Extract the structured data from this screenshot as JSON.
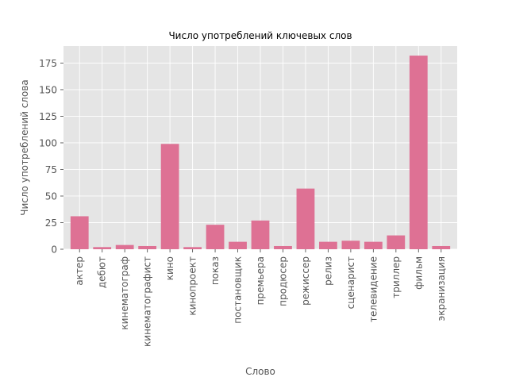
{
  "chart_data": {
    "type": "bar",
    "title": "Число употреблений ключевых слов",
    "xlabel": "Слово",
    "ylabel": "Число употреблений слова",
    "categories": [
      "актер",
      "дебют",
      "кинематограф",
      "кинематографист",
      "кино",
      "кинопроект",
      "показ",
      "постановщик",
      "премьера",
      "продюсер",
      "режиссер",
      "релиз",
      "сценарист",
      "телевидение",
      "триллер",
      "фильм",
      "экранизация"
    ],
    "values": [
      31,
      2,
      4,
      3,
      99,
      2,
      23,
      7,
      27,
      3,
      57,
      7,
      8,
      7,
      13,
      182,
      3
    ],
    "ylim": [
      0,
      191
    ],
    "yticks": [
      0,
      25,
      50,
      75,
      100,
      125,
      150,
      175
    ],
    "grid": true,
    "bar_color": "#DE7194",
    "background_color": "#E5E5E5",
    "grid_color": "#FFFFFF"
  }
}
